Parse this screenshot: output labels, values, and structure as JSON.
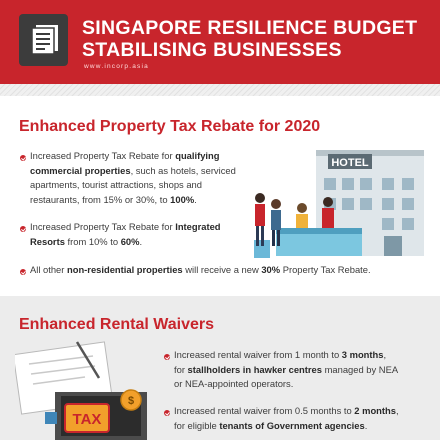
{
  "header": {
    "title_line1": "SINGAPORE RESILIENCE BUDGET",
    "title_line2": "STABILISING BUSINESSES",
    "website": "www.incorp.asia",
    "logo_icon": "document-stack-icon"
  },
  "section1": {
    "heading": "Enhanced Property Tax Rebate for 2020",
    "bullets": [
      {
        "l1a": "Increased Property Tax Rebate for ",
        "l1b": "qualifying",
        "l2a": "commercial properties",
        "l2b": ", such as hotels, serviced",
        "l3": "apartments, tourist attractions, shops and",
        "l4a": "restaurants, from 15% or 30%, to ",
        "l4b": "100%",
        "l4c": "."
      },
      {
        "l1a": "Increased Property Tax Rebate for ",
        "l1b": "Integrated",
        "l2a": "Resorts",
        "l2b": " from 10% to ",
        "l2c": "60%",
        "l2d": "."
      },
      {
        "a": "All other ",
        "b": "non-residential properties",
        "c": " will receive a new ",
        "d": "30%",
        "e": " Property Tax Rebate."
      }
    ],
    "hotel_sign": "HOTEL"
  },
  "section2": {
    "heading": "Enhanced Rental Waivers",
    "bullets": [
      {
        "l1a": "Increased rental waiver from 1 month to ",
        "l1b": "3 months",
        "l1c": ",",
        "l2a": "for ",
        "l2b": "stallholders in hawker centres",
        "l2c": " managed by NEA",
        "l3": "or NEA-appointed operators."
      },
      {
        "l1a": "Increased rental waiver from 0.5 months to ",
        "l1b": "2 months",
        "l1c": ",",
        "l2a": "for eligible ",
        "l2b": "tenants of Government agencies",
        "l2c": "."
      }
    ],
    "tax_label": "TAX",
    "coin_symbol": "$"
  }
}
